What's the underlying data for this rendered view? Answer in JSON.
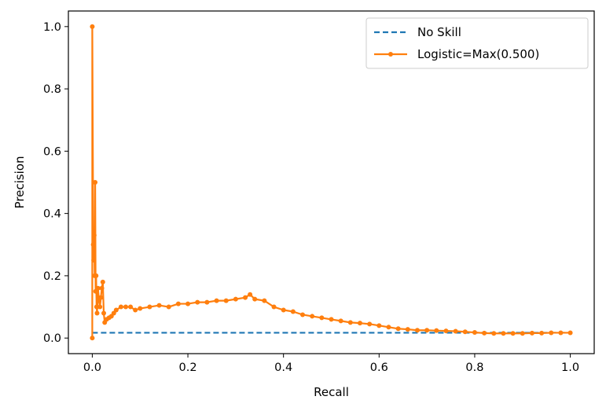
{
  "chart_data": {
    "type": "line",
    "title": "",
    "xlabel": "Recall",
    "ylabel": "Precision",
    "xlim": [
      -0.05,
      1.05
    ],
    "ylim": [
      -0.05,
      1.05
    ],
    "xticks": [
      "0.0",
      "0.2",
      "0.4",
      "0.6",
      "0.8",
      "1.0"
    ],
    "yticks": [
      "0.0",
      "0.2",
      "0.4",
      "0.6",
      "0.8",
      "1.0"
    ],
    "grid": false,
    "legend_position": "top-right",
    "series": [
      {
        "name": "No Skill",
        "style": "dashed",
        "color": "#1f77b4",
        "x": [
          0,
          1
        ],
        "y": [
          0.017,
          0.017
        ]
      },
      {
        "name": "Logistic=Max(0.500)",
        "style": "line-marker",
        "color": "#ff7f0e",
        "x": [
          0,
          0,
          0.002,
          0.003,
          0.004,
          0.005,
          0.006,
          0.007,
          0.008,
          0.009,
          0.01,
          0.012,
          0.014,
          0.016,
          0.018,
          0.02,
          0.022,
          0.024,
          0.026,
          0.03,
          0.035,
          0.04,
          0.045,
          0.05,
          0.06,
          0.07,
          0.08,
          0.09,
          0.1,
          0.12,
          0.14,
          0.16,
          0.18,
          0.2,
          0.22,
          0.24,
          0.26,
          0.28,
          0.3,
          0.32,
          0.33,
          0.34,
          0.36,
          0.38,
          0.4,
          0.42,
          0.44,
          0.46,
          0.48,
          0.5,
          0.52,
          0.54,
          0.56,
          0.58,
          0.6,
          0.62,
          0.64,
          0.66,
          0.68,
          0.7,
          0.72,
          0.74,
          0.76,
          0.78,
          0.8,
          0.82,
          0.84,
          0.86,
          0.88,
          0.9,
          0.92,
          0.94,
          0.96,
          0.98,
          1.0
        ],
        "y": [
          0.0,
          1.0,
          0.3,
          0.25,
          0.33,
          0.2,
          0.5,
          0.15,
          0.2,
          0.1,
          0.08,
          0.16,
          0.12,
          0.1,
          0.13,
          0.16,
          0.18,
          0.08,
          0.05,
          0.06,
          0.065,
          0.07,
          0.08,
          0.09,
          0.1,
          0.1,
          0.1,
          0.09,
          0.095,
          0.1,
          0.105,
          0.1,
          0.11,
          0.11,
          0.115,
          0.115,
          0.12,
          0.12,
          0.125,
          0.13,
          0.14,
          0.125,
          0.12,
          0.1,
          0.09,
          0.085,
          0.075,
          0.07,
          0.065,
          0.06,
          0.055,
          0.05,
          0.048,
          0.045,
          0.04,
          0.035,
          0.03,
          0.028,
          0.025,
          0.025,
          0.024,
          0.023,
          0.022,
          0.02,
          0.018,
          0.016,
          0.015,
          0.015,
          0.015,
          0.015,
          0.016,
          0.016,
          0.017,
          0.017,
          0.017
        ]
      }
    ]
  }
}
